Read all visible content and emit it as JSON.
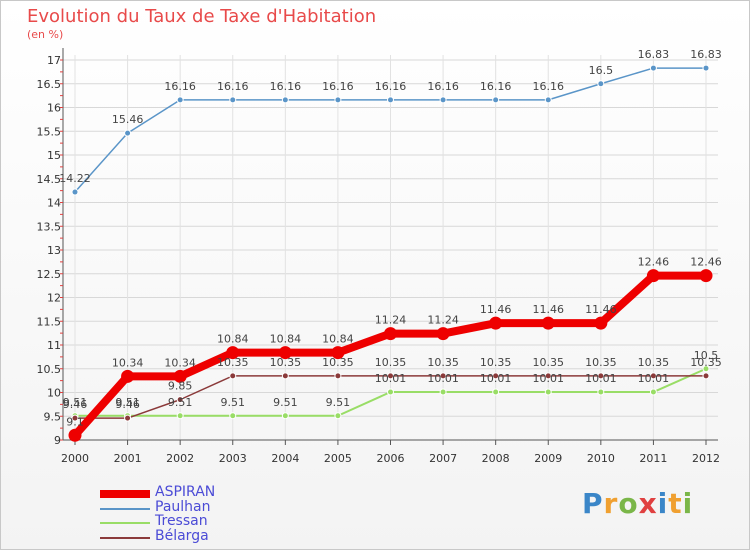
{
  "chart_data": {
    "type": "line",
    "title": "Evolution du Taux de Taxe d'Habitation",
    "unit_label": "(en %)",
    "xlabel": "",
    "ylabel": "",
    "categories": [
      "2000",
      "2001",
      "2002",
      "2003",
      "2004",
      "2005",
      "2006",
      "2007",
      "2008",
      "2009",
      "2010",
      "2011",
      "2012"
    ],
    "ylim": [
      9,
      17
    ],
    "yticks": [
      9,
      9.5,
      10,
      10.5,
      11,
      11.5,
      12,
      12.5,
      13,
      13.5,
      14,
      14.5,
      15,
      15.5,
      16,
      16.5,
      17
    ],
    "ytick_labels": [
      "9",
      "9.5",
      "10",
      "10.5",
      "11",
      "11.5",
      "12",
      "12.5",
      "13",
      "13.5",
      "14",
      "14.5",
      "15",
      "15.5",
      "16",
      "16.5",
      "17"
    ],
    "grid": true,
    "legend_position": "bottom-left",
    "series": [
      {
        "name": "ASPIRAN",
        "color": "#ee0000",
        "values": [
          9.1,
          10.34,
          10.34,
          10.84,
          10.84,
          10.84,
          11.24,
          11.24,
          11.46,
          11.46,
          11.46,
          12.46,
          12.46
        ],
        "labels": [
          "9.1",
          "10.34",
          "10.34",
          "10.84",
          "10.84",
          "10.84",
          "11.24",
          "11.24",
          "11.46",
          "11.46",
          "11.46",
          "12.46",
          "12.46"
        ]
      },
      {
        "name": "Paulhan",
        "color": "#5a95c8",
        "values": [
          14.22,
          15.46,
          16.16,
          16.16,
          16.16,
          16.16,
          16.16,
          16.16,
          16.16,
          16.16,
          16.5,
          16.83,
          16.83
        ],
        "labels": [
          "14.22",
          "15.46",
          "16.16",
          "16.16",
          "16.16",
          "16.16",
          "16.16",
          "16.16",
          "16.16",
          "16.16",
          "16.5",
          "16.83",
          "16.83"
        ]
      },
      {
        "name": "Tressan",
        "color": "#99dd66",
        "values": [
          9.51,
          9.51,
          9.51,
          9.51,
          9.51,
          9.51,
          10.01,
          10.01,
          10.01,
          10.01,
          10.01,
          10.01,
          10.5
        ],
        "labels": [
          "9.51",
          "9.51",
          "9.51",
          "9.51",
          "9.51",
          "9.51",
          "10.01",
          "10.01",
          "10.01",
          "10.01",
          "10.01",
          "10.01",
          "10.5"
        ]
      },
      {
        "name": "Bélarga",
        "color": "#8b3a3a",
        "values": [
          9.46,
          9.46,
          9.85,
          10.35,
          10.35,
          10.35,
          10.35,
          10.35,
          10.35,
          10.35,
          10.35,
          10.35,
          10.35
        ],
        "labels": [
          "9.46",
          "9.46",
          "9.85",
          "10.35",
          "10.35",
          "10.35",
          "10.35",
          "10.35",
          "10.35",
          "10.35",
          "10.35",
          "10.35",
          "10.35"
        ]
      }
    ]
  },
  "logo": {
    "text": "Proxiti",
    "letters": [
      "P",
      "r",
      "o",
      "x",
      "i",
      "t",
      "i"
    ],
    "colors": [
      "#3a86c8",
      "#f0a030",
      "#7ab648",
      "#e04040",
      "#3a86c8",
      "#f0a030",
      "#7ab648"
    ]
  }
}
